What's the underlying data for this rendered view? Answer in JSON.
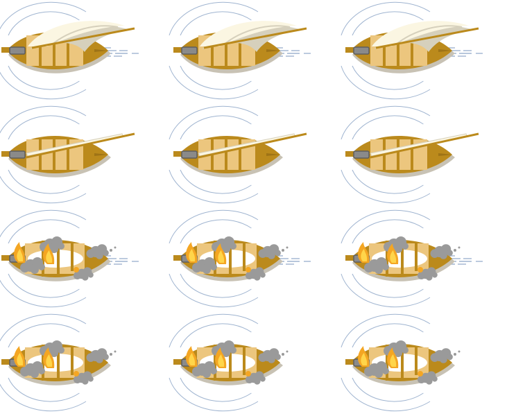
{
  "sprite_sheet": {
    "colors": {
      "hull": "#bb8a1c",
      "hull_dark": "#9e7316",
      "deck": "#ecc67e",
      "shadow": "#c8c2b4",
      "sail": "#fbf6e2",
      "sail_shade": "#d6d0bc",
      "cannon": "#8a8a8a",
      "cannon_dark": "#5e5e5e",
      "water": "#9fb4d0",
      "smoke": "#9a9a9a",
      "fire": "#f4a623",
      "fire_inner": "#ffd54a"
    },
    "rows": [
      {
        "name": "sails-full",
        "frames": [
          {
            "icon": "ship-sails-full-icon",
            "wake": true
          },
          {
            "icon": "ship-sails-full-icon",
            "wake": true
          },
          {
            "icon": "ship-sails-full-icon",
            "wake": true
          }
        ]
      },
      {
        "name": "sails-furled",
        "frames": [
          {
            "icon": "ship-sails-furled-icon",
            "wake": false
          },
          {
            "icon": "ship-sails-furled-icon",
            "wake": false
          },
          {
            "icon": "ship-sails-furled-icon",
            "wake": false
          }
        ]
      },
      {
        "name": "wrecked-moving",
        "frames": [
          {
            "icon": "ship-wrecked-burning-icon",
            "wake": true
          },
          {
            "icon": "ship-wrecked-burning-icon",
            "wake": true
          },
          {
            "icon": "ship-wrecked-burning-icon",
            "wake": true
          }
        ]
      },
      {
        "name": "wrecked-still",
        "frames": [
          {
            "icon": "ship-wrecked-burning-icon",
            "wake": false
          },
          {
            "icon": "ship-wrecked-burning-icon",
            "wake": false
          },
          {
            "icon": "ship-wrecked-burning-icon",
            "wake": false
          }
        ]
      }
    ]
  }
}
